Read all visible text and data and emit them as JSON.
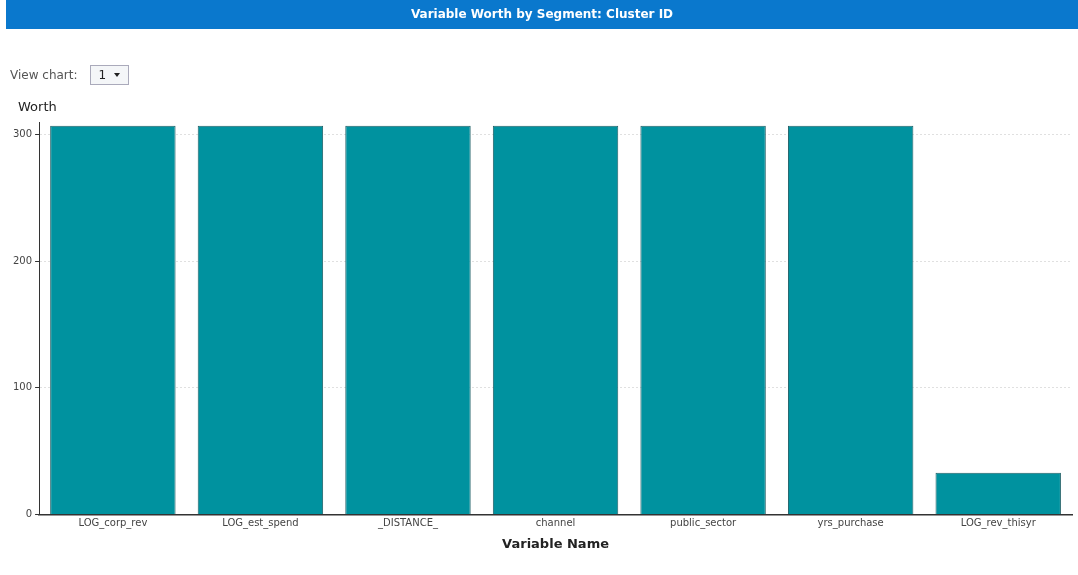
{
  "chart_data": {
    "type": "bar",
    "title": "Variable Worth by Segment: Cluster ID",
    "annotations": [
      "View chart:",
      "1"
    ],
    "xlabel": "Variable Name",
    "ylabel": "Worth",
    "categories": [
      "LOG_corp_rev",
      "LOG_est_spend",
      "_DISTANCE_",
      "channel",
      "public_sector",
      "yrs_purchase",
      "LOG_rev_thisyr"
    ],
    "values": [
      307,
      307,
      307,
      307,
      307,
      307,
      33
    ],
    "color": "#00929f",
    "ylim": [
      0,
      310
    ],
    "yticks": [
      0,
      100,
      200,
      300
    ],
    "grid": "y",
    "legend": false
  }
}
